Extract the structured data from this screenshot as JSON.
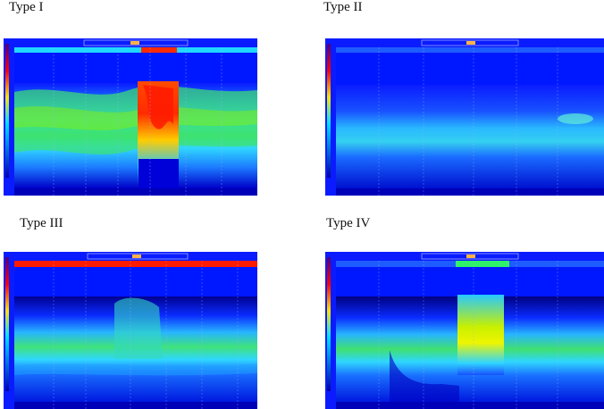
{
  "figure": {
    "panels": [
      {
        "id": "type-1",
        "label": "Type I",
        "top_band_color": "#ff2a00"
      },
      {
        "id": "type-2",
        "label": "Type II",
        "top_band_color": "#1f5cff"
      },
      {
        "id": "type-3",
        "label": "Type III",
        "top_band_color": "#ff1a00"
      },
      {
        "id": "type-4",
        "label": "Type IV",
        "top_band_color": "#2ff26a"
      }
    ],
    "colors": {
      "background": "#0a1cff",
      "deep_blue": "#0000cc",
      "cyan": "#1fd7ff",
      "green": "#39e07a",
      "yellow": "#f4f400",
      "red": "#ff2a00",
      "marker": "#ffb347"
    }
  }
}
